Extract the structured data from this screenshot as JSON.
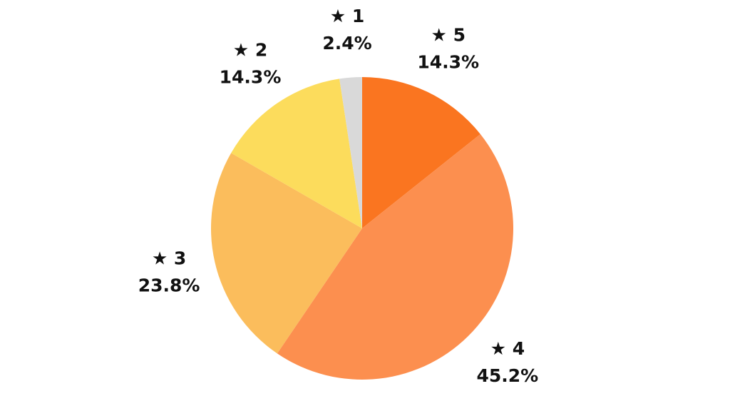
{
  "chart_data": {
    "type": "pie",
    "categories": [
      "★ 5",
      "★ 4",
      "★ 3",
      "★ 2",
      "★ 1"
    ],
    "values": [
      14.3,
      45.2,
      23.8,
      14.3,
      2.4
    ],
    "value_labels": [
      "14.3%",
      "45.2%",
      "23.8%",
      "14.3%",
      "2.4%"
    ],
    "colors": [
      "#fa7520",
      "#fc8f4f",
      "#fbbd5c",
      "#fcdc5c",
      "#d9d9d9"
    ]
  }
}
